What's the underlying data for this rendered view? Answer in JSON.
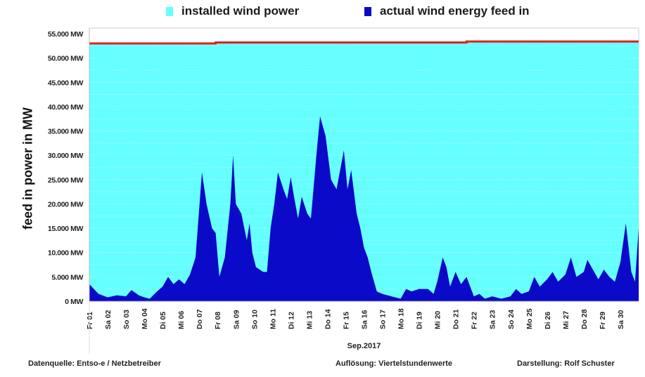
{
  "chart_data": {
    "type": "area",
    "title": "",
    "xlabel": "Sep.2017",
    "ylabel": "feed in power in MW",
    "ylim": [
      0,
      55000
    ],
    "xlim": [
      1,
      31
    ],
    "grid": true,
    "legend_placement": "top",
    "y_ticks": [
      "0 MW",
      "5.000 MW",
      "10.000 MW",
      "15.000 MW",
      "20.000 MW",
      "25.000 MW",
      "30.000 MW",
      "35.000 MW",
      "40.000 MW",
      "45.000 MW",
      "50.000 MW",
      "55.000 MW"
    ],
    "y_tick_values": [
      0,
      5000,
      10000,
      15000,
      20000,
      25000,
      30000,
      35000,
      40000,
      45000,
      50000,
      55000
    ],
    "x_ticks": [
      "Fr 01",
      "Sa 02",
      "So 03",
      "Mo 04",
      "Di 05",
      "Mi 06",
      "Do 07",
      "Fr 08",
      "Sa 09",
      "So 10",
      "Mo 11",
      "Di 12",
      "Mi 13",
      "Do 14",
      "Fr 15",
      "Sa 16",
      "So 17",
      "Mo 18",
      "Di 19",
      "Mi 20",
      "Do 21",
      "Fr 22",
      "Sa 23",
      "So 24",
      "Mo 25",
      "Di 26",
      "Mi 27",
      "Do 28",
      "Fr 29",
      "Sa 30"
    ],
    "series": [
      {
        "name": "installed wind power",
        "color": "#66ffff",
        "line_color": "#e02020",
        "x": [
          1,
          7.9,
          7.9,
          21.6,
          21.6,
          31
        ],
        "values": [
          53000,
          53000,
          53200,
          53200,
          53400,
          53400
        ]
      },
      {
        "name": "actual wind energy feed in",
        "color": "#0a0ac8",
        "x": [
          1,
          1.5,
          2,
          2.5,
          3,
          3.3,
          3.7,
          4,
          4.3,
          4.7,
          5,
          5.3,
          5.6,
          5.9,
          6.2,
          6.5,
          6.8,
          7.0,
          7.15,
          7.4,
          7.7,
          7.9,
          8.1,
          8.4,
          8.7,
          8.85,
          9.0,
          9.3,
          9.6,
          9.75,
          9.9,
          10.1,
          10.5,
          10.7,
          10.9,
          11.1,
          11.3,
          11.6,
          11.8,
          12.0,
          12.2,
          12.4,
          12.6,
          12.9,
          13.1,
          13.4,
          13.6,
          13.9,
          14.2,
          14.5,
          14.8,
          14.9,
          15.1,
          15.3,
          15.6,
          15.8,
          16.0,
          16.2,
          16.4,
          16.7,
          17,
          17.5,
          18,
          18.3,
          18.6,
          19,
          19.5,
          19.8,
          20.0,
          20.3,
          20.5,
          20.7,
          21.0,
          21.3,
          21.6,
          22.0,
          22.3,
          22.6,
          23,
          23.5,
          24.0,
          24.3,
          24.6,
          25,
          25.3,
          25.6,
          26,
          26.3,
          26.6,
          27,
          27.3,
          27.6,
          28,
          28.2,
          28.5,
          28.8,
          29.1,
          29.4,
          29.7,
          30.0,
          30.3,
          30.6,
          30.8,
          31
        ],
        "values": [
          3500,
          1500,
          800,
          1200,
          1000,
          2300,
          1200,
          800,
          500,
          2000,
          3000,
          5000,
          3500,
          4500,
          3500,
          5500,
          9000,
          19000,
          26500,
          20000,
          15000,
          14000,
          5000,
          9000,
          20000,
          30000,
          20000,
          18000,
          12500,
          16000,
          10000,
          7000,
          6000,
          6000,
          15000,
          20000,
          26500,
          23000,
          21000,
          25500,
          21000,
          17000,
          21500,
          18000,
          17000,
          30000,
          38000,
          34000,
          25000,
          23000,
          29000,
          31000,
          23000,
          27000,
          18000,
          15000,
          11000,
          9000,
          6000,
          2000,
          1500,
          1000,
          500,
          2500,
          2000,
          2500,
          2500,
          1500,
          4000,
          9000,
          7000,
          3000,
          6000,
          3500,
          5000,
          1000,
          1500,
          500,
          1000,
          500,
          1000,
          2500,
          1500,
          2000,
          5000,
          3000,
          4500,
          6000,
          4000,
          5500,
          9000,
          5000,
          6000,
          8500,
          6500,
          4500,
          6500,
          5000,
          4000,
          8000,
          16000,
          6000,
          4000,
          15000
        ]
      }
    ]
  },
  "legend": {
    "installed_label": "installed wind power",
    "feed_label": "actual wind energy feed in"
  },
  "footer": {
    "source": "Datenquelle: Entso-e  / Netzbetreiber",
    "resolution": "Auflösung: Viertelstundenwerte",
    "author": "Darstellung: Rolf Schuster"
  }
}
